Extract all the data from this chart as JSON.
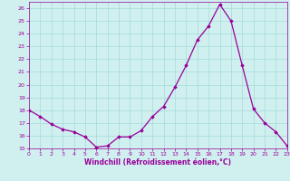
{
  "x": [
    0,
    1,
    2,
    3,
    4,
    5,
    6,
    7,
    8,
    9,
    10,
    11,
    12,
    13,
    14,
    15,
    16,
    17,
    18,
    19,
    20,
    21,
    22,
    23
  ],
  "y": [
    18.0,
    17.5,
    16.9,
    16.5,
    16.3,
    15.9,
    15.1,
    15.2,
    15.9,
    15.9,
    16.4,
    17.5,
    18.3,
    19.8,
    21.5,
    23.5,
    24.6,
    26.3,
    25.0,
    21.5,
    18.1,
    17.0,
    16.3,
    15.2
  ],
  "xlim": [
    0,
    23
  ],
  "ylim": [
    15,
    26.5
  ],
  "yticks": [
    15,
    16,
    17,
    18,
    19,
    20,
    21,
    22,
    23,
    24,
    25,
    26
  ],
  "xticks": [
    0,
    1,
    2,
    3,
    4,
    5,
    6,
    7,
    8,
    9,
    10,
    11,
    12,
    13,
    14,
    15,
    16,
    17,
    18,
    19,
    20,
    21,
    22,
    23
  ],
  "xlabel": "Windchill (Refroidissement éolien,°C)",
  "line_color": "#990099",
  "marker": "D",
  "marker_size": 1.8,
  "line_width": 0.9,
  "bg_color": "#d0f0f0",
  "grid_color": "#aadddd",
  "tick_color": "#990099",
  "label_color": "#990099"
}
